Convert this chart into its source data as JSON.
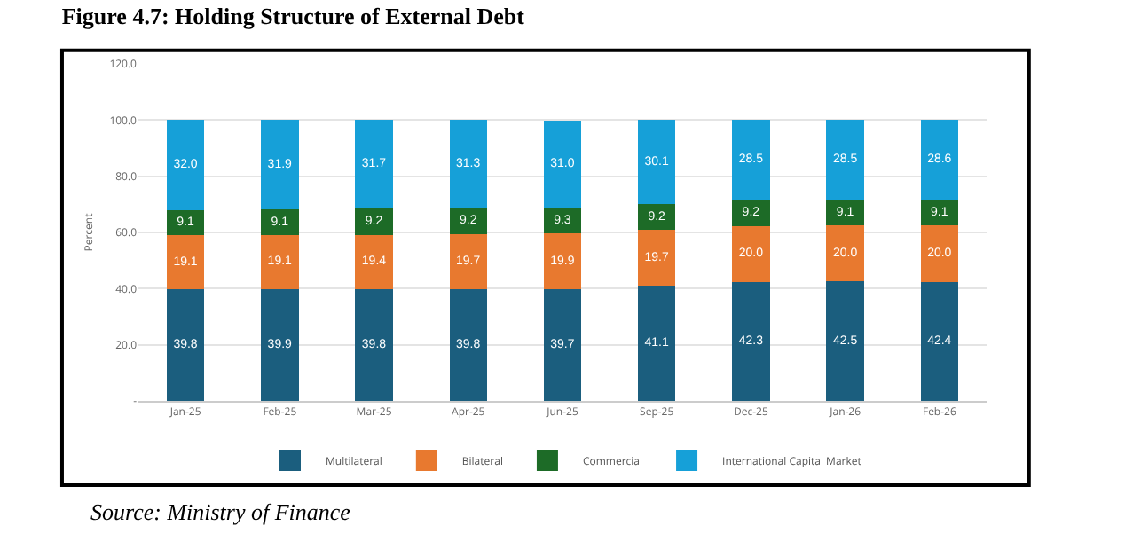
{
  "chart_data": {
    "type": "bar",
    "title": "Figure 4.7: Holding Structure of External Debt",
    "ylabel": "Percent",
    "annotations": [
      "Source: Ministry of Finance"
    ],
    "categories": [
      "Jan-25",
      "Feb-25",
      "Mar-25",
      "Apr-25",
      "Jun-25",
      "Sep-25",
      "Dec-25",
      "Jan-26",
      "Feb-26"
    ],
    "stacked": true,
    "ylim": [
      0,
      120
    ],
    "yticks": [
      {
        "value": 0,
        "label": "-"
      },
      {
        "value": 20,
        "label": "20.0"
      },
      {
        "value": 40,
        "label": "40.0"
      },
      {
        "value": 60,
        "label": "60.0"
      },
      {
        "value": 80,
        "label": "80.0"
      },
      {
        "value": 100,
        "label": "100.0"
      },
      {
        "value": 120,
        "label": "120.0"
      }
    ],
    "grid": "y",
    "legend": "bottom",
    "series": [
      {
        "name": "Multilateral",
        "color": "#1b5e7e",
        "values": [
          39.8,
          39.9,
          39.8,
          39.8,
          39.7,
          41.1,
          42.3,
          42.5,
          42.4
        ],
        "value_labels": [
          "39.8",
          "39.9",
          "39.8",
          "39.8",
          "39.7",
          "41.1",
          "42.3",
          "42.5",
          "42.4"
        ]
      },
      {
        "name": "Bilateral",
        "color": "#e8792f",
        "values": [
          19.1,
          19.1,
          19.4,
          19.7,
          19.9,
          19.7,
          20.0,
          20.0,
          20.0
        ],
        "value_labels": [
          "19.1",
          "19.1",
          "19.4",
          "19.7",
          "19.9",
          "19.7",
          "20.0",
          "20.0",
          "20.0"
        ]
      },
      {
        "name": "Commercial",
        "color": "#1d6b27",
        "values": [
          9.1,
          9.1,
          9.2,
          9.2,
          9.3,
          9.2,
          9.2,
          9.1,
          9.1
        ],
        "value_labels": [
          "9.1",
          "9.1",
          "9.2",
          "9.2",
          "9.3",
          "9.2",
          "9.2",
          "9.1",
          "9.1"
        ]
      },
      {
        "name": "International Capital Market",
        "color": "#16a0d8",
        "values": [
          32.0,
          31.9,
          31.7,
          31.3,
          31.0,
          30.1,
          28.5,
          28.5,
          28.6
        ],
        "value_labels": [
          "32.0",
          "31.9",
          "31.7",
          "31.3",
          "31.0",
          "30.1",
          "28.5",
          "28.5",
          "28.6"
        ]
      }
    ]
  }
}
